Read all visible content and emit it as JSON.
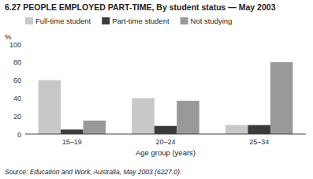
{
  "chart_data": {
    "type": "bar",
    "title": "6.27 PEOPLE EMPLOYED PART-TIME, By student status — May 2003",
    "x_label": "Age group (years)",
    "y_label": "%",
    "annotations": [
      "Source: Education and Work, Australia, May 2003 (6227.0)."
    ],
    "categories": [
      "15–19",
      "20–24",
      "25–34"
    ],
    "series": [
      {
        "name": "Full-time student",
        "color": "#c8c8c8",
        "values": [
          60,
          40,
          10
        ]
      },
      {
        "name": "Part-time student",
        "color": "#3a3a3a",
        "values": [
          5,
          9,
          10
        ]
      },
      {
        "name": "Not studying",
        "color": "#999999",
        "values": [
          15,
          37,
          80
        ]
      }
    ],
    "ylim": [
      0,
      100
    ],
    "yticks": [
      0,
      20,
      40,
      60,
      80,
      100
    ],
    "grid": false,
    "legend": "upper left"
  }
}
